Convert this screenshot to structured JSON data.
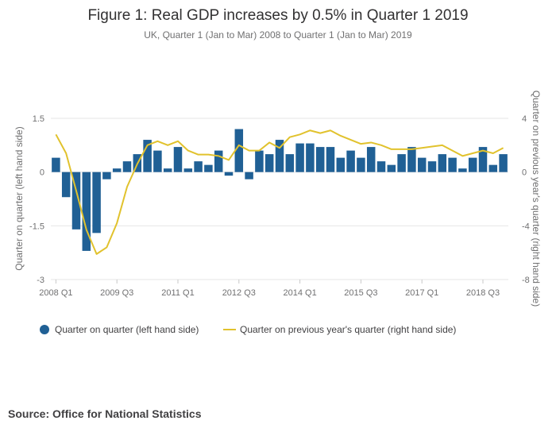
{
  "chart_data": {
    "type": "bar",
    "title": "Figure 1: Real GDP increases by 0.5% in Quarter 1 2019",
    "subtitle": "UK, Quarter 1 (Jan to Mar) 2008 to Quarter 1 (Jan to Mar) 2019",
    "ylabel_left": "Quarter on quarter (left hand side)",
    "ylabel_right": "Quarter on previous year's quarter (right hand side)",
    "ylim_left": [
      -3,
      1.5
    ],
    "ylim_right": [
      -8,
      4
    ],
    "yticks_left": [
      "1.5",
      "0",
      "-1.5",
      "-3"
    ],
    "yticks_right": [
      "4",
      "0",
      "-4",
      "-8"
    ],
    "xtick_labels": [
      "2008 Q1",
      "2009 Q3",
      "2011 Q1",
      "2012 Q3",
      "2014 Q1",
      "2015 Q3",
      "2017 Q1",
      "2018 Q3"
    ],
    "grid": true,
    "legend_position": "bottom",
    "colors": {
      "bars": "#206095",
      "line": "#E1C22D"
    },
    "categories": [
      "2008 Q1",
      "2008 Q2",
      "2008 Q3",
      "2008 Q4",
      "2009 Q1",
      "2009 Q2",
      "2009 Q3",
      "2009 Q4",
      "2010 Q1",
      "2010 Q2",
      "2010 Q3",
      "2010 Q4",
      "2011 Q1",
      "2011 Q2",
      "2011 Q3",
      "2011 Q4",
      "2012 Q1",
      "2012 Q2",
      "2012 Q3",
      "2012 Q4",
      "2013 Q1",
      "2013 Q2",
      "2013 Q3",
      "2013 Q4",
      "2014 Q1",
      "2014 Q2",
      "2014 Q3",
      "2014 Q4",
      "2015 Q1",
      "2015 Q2",
      "2015 Q3",
      "2015 Q4",
      "2016 Q1",
      "2016 Q2",
      "2016 Q3",
      "2016 Q4",
      "2017 Q1",
      "2017 Q2",
      "2017 Q3",
      "2017 Q4",
      "2018 Q1",
      "2018 Q2",
      "2018 Q3",
      "2018 Q4",
      "2019 Q1"
    ],
    "series": [
      {
        "name": "Quarter on quarter (left hand side)",
        "axis": "left",
        "kind": "bar",
        "values": [
          0.4,
          -0.7,
          -1.6,
          -2.2,
          -1.7,
          -0.2,
          0.1,
          0.3,
          0.5,
          0.9,
          0.6,
          0.1,
          0.7,
          0.1,
          0.3,
          0.2,
          0.6,
          -0.1,
          1.2,
          -0.2,
          0.6,
          0.5,
          0.9,
          0.5,
          0.8,
          0.8,
          0.7,
          0.7,
          0.4,
          0.6,
          0.4,
          0.7,
          0.3,
          0.2,
          0.5,
          0.7,
          0.4,
          0.3,
          0.5,
          0.4,
          0.1,
          0.4,
          0.7,
          0.2,
          0.5
        ]
      },
      {
        "name": "Quarter on previous year's quarter (right hand side)",
        "axis": "right",
        "kind": "line",
        "values": [
          2.8,
          1.4,
          -1.4,
          -4.3,
          -6.1,
          -5.6,
          -3.8,
          -1.1,
          0.6,
          2.0,
          2.3,
          2.0,
          2.3,
          1.6,
          1.3,
          1.3,
          1.2,
          0.9,
          2.0,
          1.6,
          1.6,
          2.2,
          1.8,
          2.6,
          2.8,
          3.1,
          2.9,
          3.1,
          2.7,
          2.4,
          2.1,
          2.2,
          2.0,
          1.7,
          1.7,
          1.7,
          1.8,
          1.9,
          2.0,
          1.6,
          1.2,
          1.4,
          1.6,
          1.4,
          1.8
        ]
      }
    ]
  },
  "source": "Source: Office for National Statistics"
}
